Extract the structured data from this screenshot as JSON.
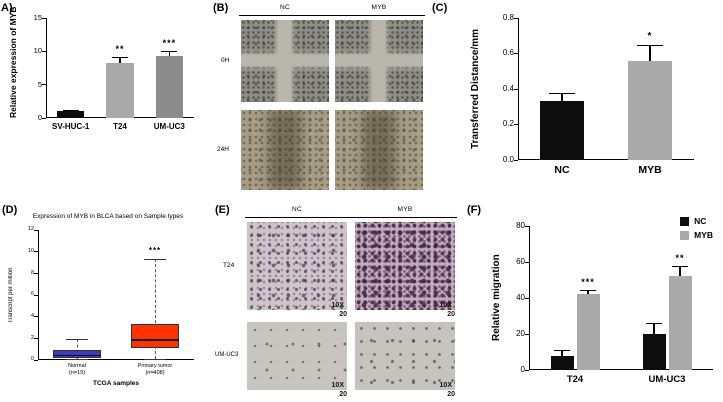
{
  "panels": {
    "A": {
      "label": "A)"
    },
    "B": {
      "label": "(B)",
      "columns": [
        "NC",
        "MYB"
      ],
      "rows": [
        "0H",
        "24H"
      ]
    },
    "C": {
      "label": "(C)"
    },
    "D": {
      "label": "(D)"
    },
    "E": {
      "label": "(E)",
      "columns": [
        "NC",
        "MYB"
      ],
      "rows": [
        "T24",
        "UM-UC3"
      ],
      "magnification": {
        "line1": "10X",
        "line2": "20"
      }
    },
    "F": {
      "label": "(F)"
    }
  },
  "chart_data": [
    {
      "panel": "A",
      "target": "chartA",
      "type": "bar",
      "ylabel": "Relative expression of MYB",
      "ylim": [
        0,
        15
      ],
      "yticks": [
        0,
        5,
        10,
        15
      ],
      "ytick_labels": [
        "0",
        "5",
        "10",
        "15"
      ],
      "categories": [
        "SV-HUC-1",
        "T24",
        "UM-UC3"
      ],
      "values": [
        1.0,
        8.2,
        9.3
      ],
      "errors": [
        0.2,
        1.0,
        0.8
      ],
      "annotations": [
        "",
        "**",
        "***"
      ],
      "colors": [
        "#0d0d0d",
        "#a9a9a9",
        "#8c8c8c"
      ]
    },
    {
      "panel": "C",
      "target": "chartC",
      "type": "bar",
      "ylabel": "Transferred Distance/mm",
      "ylim": [
        0,
        0.8
      ],
      "yticks": [
        0,
        0.2,
        0.4,
        0.6,
        0.8
      ],
      "ytick_labels": [
        "0.0",
        "0.2",
        "0.4",
        "0.6",
        "0.8"
      ],
      "categories": [
        "NC",
        "MYB"
      ],
      "values": [
        0.33,
        0.56
      ],
      "errors": [
        0.05,
        0.09
      ],
      "annotations": [
        "",
        "*"
      ],
      "colors": [
        "#0d0d0d",
        "#a9a9a9"
      ]
    },
    {
      "panel": "D",
      "target": "chartD",
      "type": "box",
      "title": "Expression of MYB in BLCA based on Sample types",
      "ylabel": "Transcript per million",
      "xlabel": "TCGA samples",
      "ylim": [
        0,
        12
      ],
      "yticks": [
        0,
        2,
        4,
        6,
        8,
        10,
        12
      ],
      "ytick_labels": [
        "0",
        "2",
        "4",
        "6",
        "8",
        "10",
        "12"
      ],
      "annotation": "***",
      "groups": [
        {
          "label": "Normal\n(n=19)",
          "color": "#3b3bc4",
          "whisker_low": 0.05,
          "q1": 0.2,
          "median": 0.5,
          "q3": 0.9,
          "whisker_high": 1.9
        },
        {
          "label": "Primary tumor\n(n=408)",
          "color": "#ff3200",
          "whisker_low": 0.05,
          "q1": 1.1,
          "median": 1.9,
          "q3": 3.3,
          "whisker_high": 9.3
        }
      ]
    },
    {
      "panel": "F",
      "target": "chartF",
      "type": "grouped_bar",
      "ylabel": "Relative migration",
      "ylim": [
        0,
        80
      ],
      "yticks": [
        0,
        20,
        40,
        60,
        80
      ],
      "ytick_labels": [
        "0",
        "20",
        "40",
        "60",
        "80"
      ],
      "categories": [
        "T24",
        "UM-UC3"
      ],
      "series": [
        {
          "name": "NC",
          "color": "#0d0d0d",
          "values": [
            8,
            20
          ],
          "errors": [
            3,
            6
          ],
          "annotations": [
            "",
            ""
          ]
        },
        {
          "name": "MYB",
          "color": "#a9a9a9",
          "values": [
            42,
            52
          ],
          "errors": [
            2.5,
            6
          ],
          "annotations": [
            "***",
            "**"
          ]
        }
      ]
    }
  ]
}
